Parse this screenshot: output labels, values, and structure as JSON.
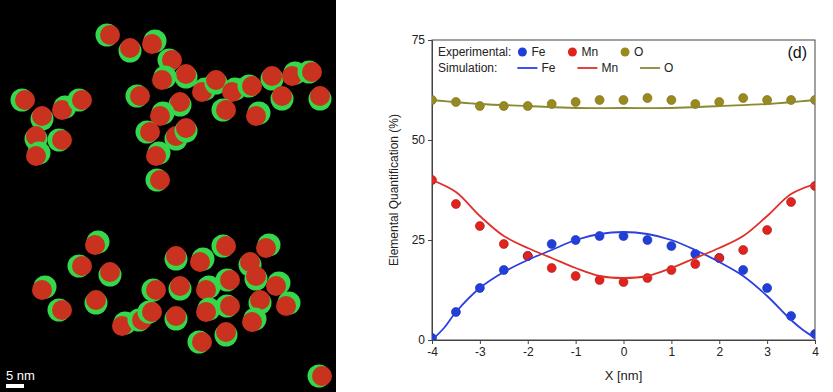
{
  "image_panel": {
    "scale_bar": "5 nm"
  },
  "chart_data": {
    "type": "line",
    "panel": "(d)",
    "x_label": "X [nm]",
    "y_label": "Elemental Quantification (%)",
    "legend_titles": [
      "Experimental:",
      "Simulation:"
    ],
    "legend": "top-left",
    "grid": false,
    "xlim": [
      -4,
      4
    ],
    "xticks": [
      -4,
      -3,
      -2,
      -1,
      0,
      1,
      2,
      3,
      4
    ],
    "ylim": [
      0,
      75
    ],
    "yticks": [
      0,
      25,
      50,
      75
    ],
    "series": [
      {
        "name": "Fe",
        "type": "scatter",
        "marker": "circle",
        "color": "#1f3fd8",
        "x": [
          -4,
          -3.5,
          -3,
          -2.5,
          -2,
          -1.5,
          -1,
          -0.5,
          0,
          0.5,
          1,
          1.5,
          2,
          2.5,
          3,
          3.5,
          4
        ],
        "values": [
          0.5,
          7,
          13,
          17.5,
          21,
          24,
          25,
          26,
          26,
          25,
          23.5,
          21.5,
          20.5,
          17.5,
          13,
          6,
          1.5
        ]
      },
      {
        "name": "Mn",
        "type": "scatter",
        "marker": "circle",
        "color": "#e0231e",
        "x": [
          -4,
          -3.5,
          -3,
          -2.5,
          -2,
          -1.5,
          -1,
          -0.5,
          0,
          0.5,
          1,
          1.5,
          2,
          2.5,
          3,
          3.5,
          4
        ],
        "values": [
          40,
          34,
          28.5,
          24,
          21,
          18,
          16,
          15,
          14.5,
          15.5,
          17.5,
          19,
          20.5,
          22.5,
          27.5,
          34.5,
          38.5
        ]
      },
      {
        "name": "O",
        "type": "scatter",
        "marker": "circle",
        "color": "#9a8a1c",
        "x": [
          -4,
          -3.5,
          -3,
          -2.5,
          -2,
          -1.5,
          -1,
          -0.5,
          0,
          0.5,
          1,
          1.5,
          2,
          2.5,
          3,
          3.5,
          4
        ],
        "values": [
          60,
          59.5,
          58.5,
          58.5,
          58.5,
          59,
          59.5,
          60,
          60,
          60.5,
          60,
          59,
          59.5,
          60.5,
          60,
          60,
          60
        ]
      },
      {
        "name": "Fe",
        "type": "line",
        "line_style": "solid",
        "color": "#2b3fe0",
        "x": [
          -4,
          -3.75,
          -3.5,
          -3,
          -2.5,
          -2,
          -1.5,
          -1,
          -0.5,
          0,
          0.5,
          1,
          1.5,
          2,
          2.5,
          3,
          3.5,
          3.75,
          4
        ],
        "values": [
          0,
          3,
          7,
          13,
          17,
          20,
          22.5,
          25,
          26.5,
          27,
          26.5,
          25,
          22.5,
          19.5,
          16,
          11,
          5,
          2.5,
          0.5
        ]
      },
      {
        "name": "Mn",
        "type": "line",
        "line_style": "solid",
        "color": "#e0302a",
        "x": [
          -4,
          -3.5,
          -3,
          -2.5,
          -2,
          -1.5,
          -1,
          -0.5,
          0,
          0.5,
          1,
          1.5,
          2,
          2.5,
          3,
          3.5,
          4
        ],
        "values": [
          40,
          37,
          31,
          26,
          23,
          20.5,
          18,
          16,
          15.5,
          16,
          18,
          20.5,
          23,
          26,
          31,
          36.5,
          39
        ]
      },
      {
        "name": "O",
        "type": "line",
        "line_style": "solid",
        "color": "#8a8a30",
        "x": [
          -4,
          -3,
          -2,
          -1,
          0,
          1,
          2,
          3,
          4
        ],
        "values": [
          60,
          59,
          58.5,
          58,
          58,
          58,
          58.5,
          59,
          60
        ]
      }
    ]
  }
}
